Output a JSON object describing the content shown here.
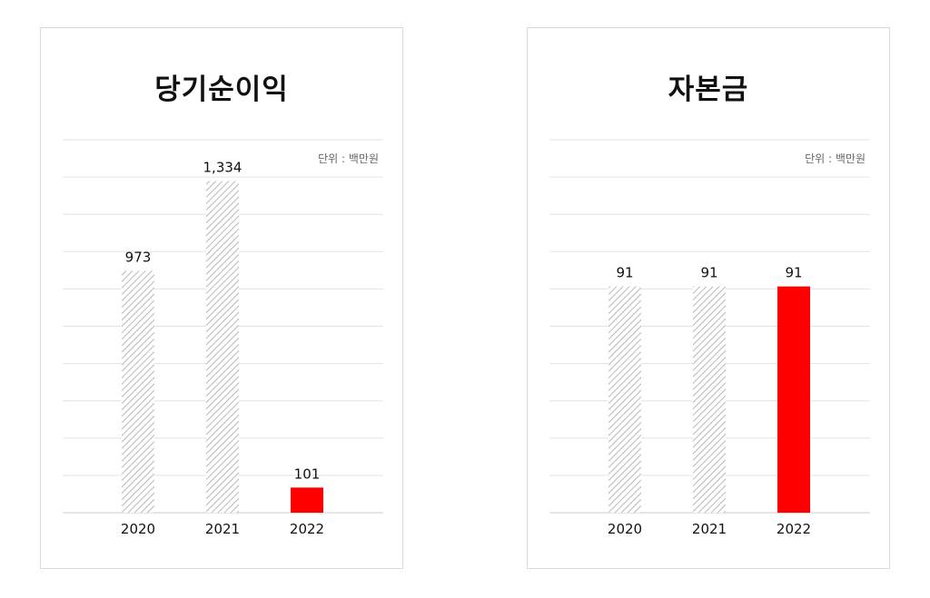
{
  "chart_data": [
    {
      "type": "bar",
      "title": "당기순이익",
      "unit": "단위 : 백만원",
      "categories": [
        "2020",
        "2021",
        "2022"
      ],
      "values": [
        973,
        1334,
        101
      ],
      "value_labels": [
        "973",
        "1,334",
        "101"
      ],
      "ylim": [
        0,
        1500
      ],
      "grid": true,
      "highlight_index": 2
    },
    {
      "type": "bar",
      "title": "자본금",
      "unit": "단위 : 백만원",
      "categories": [
        "2020",
        "2021",
        "2022"
      ],
      "values": [
        91,
        91,
        91
      ],
      "value_labels": [
        "91",
        "91",
        "91"
      ],
      "ylim": [
        0,
        150
      ],
      "grid": true,
      "highlight_index": 2
    }
  ],
  "colors": {
    "highlight": "#ff0000",
    "hatch_stroke": "#b8b8b8",
    "gridline": "#e3e3e3",
    "baseline": "#cccccc"
  }
}
